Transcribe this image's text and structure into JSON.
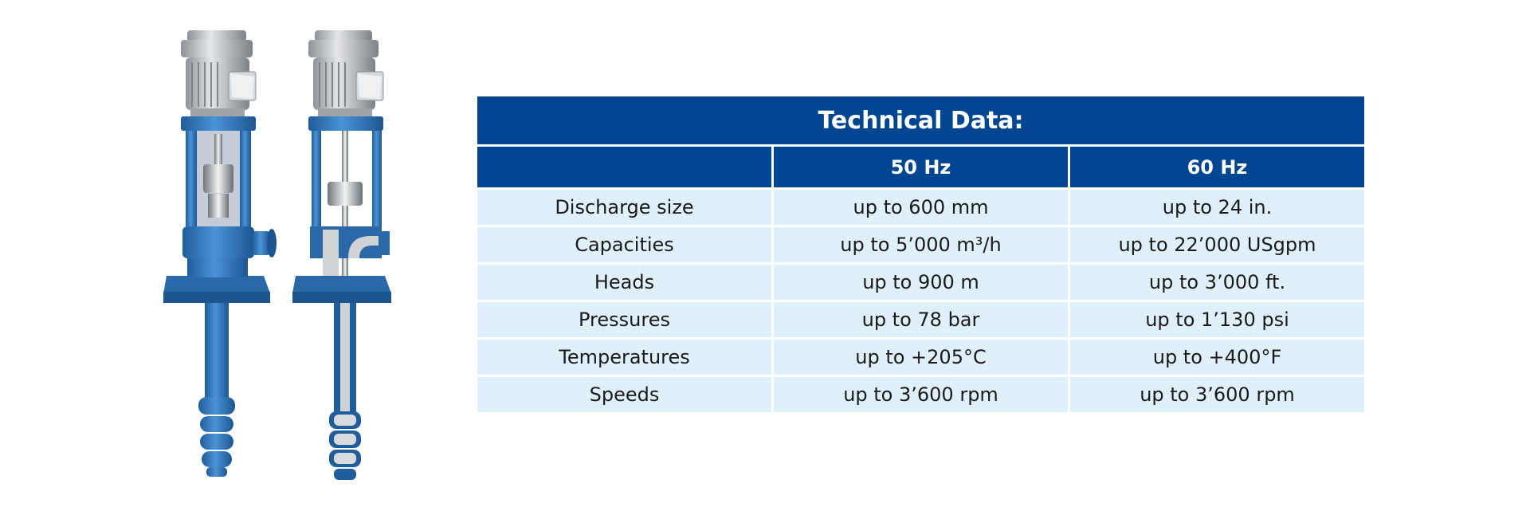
{
  "table": {
    "title": "Technical Data:",
    "headers": [
      "",
      "50 Hz",
      "60 Hz"
    ],
    "rows": [
      [
        "Discharge size",
        "up to 600 mm",
        "up to 24 in."
      ],
      [
        "Capacities",
        "up to 5’000 m³/h",
        "up to 22’000 USgpm"
      ],
      [
        "Heads",
        "up to 900 m",
        "up to 3’000 ft."
      ],
      [
        "Pressures",
        "up to 78 bar",
        "up to 1’130 psi"
      ],
      [
        "Temperatures",
        "up to +205°C",
        "up to +400°F"
      ],
      [
        "Speeds",
        "up to 3’600 rpm",
        "up to 3’600 rpm"
      ]
    ]
  },
  "colors": {
    "header_blue": "#004590",
    "row_light_blue": "#dff0fb",
    "pump_blue": "#2f74b8",
    "motor_gray": "#b8bcc0"
  }
}
